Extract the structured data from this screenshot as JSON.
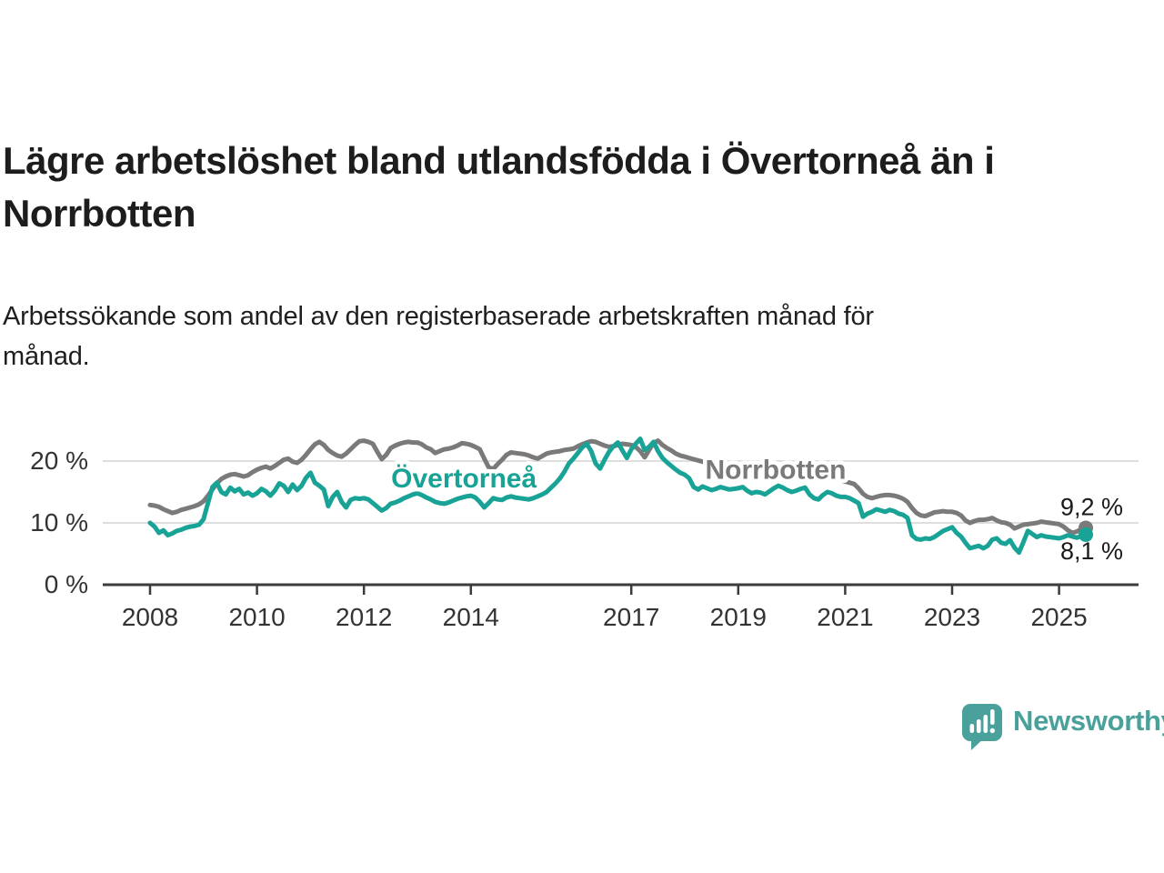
{
  "header": {
    "title_lines": [
      "Lägre arbetslöshet bland utlandsfödda i Övertorneå än i",
      "Norrbotten"
    ],
    "subtitle_lines": [
      "Arbetssökande som andel av den registerbaserade arbetskraften månad för",
      "månad."
    ]
  },
  "branding": {
    "logo_text": "Newsworthy",
    "logo_color": "#4aa09b"
  },
  "chart_data": {
    "type": "line",
    "title": "Lägre arbetslöshet bland utlandsfödda i Övertorneå än i Norrbotten",
    "subtitle": "Arbetssökande som andel av den registerbaserade arbetskraften månad för månad.",
    "unit": "%",
    "grid": "horizontal",
    "legend": "inline-labels",
    "xlim": [
      2007.1,
      2026.5
    ],
    "ylim": [
      0,
      26
    ],
    "x_ticks": [
      2008,
      2010,
      2012,
      2014,
      2017,
      2019,
      2021,
      2023,
      2025
    ],
    "y_ticks": [
      {
        "value": 0,
        "label": "0 %"
      },
      {
        "value": 10,
        "label": "10 %"
      },
      {
        "value": 20,
        "label": "20 %"
      }
    ],
    "series": [
      {
        "name": "Norrbotten",
        "color": "#7a7a7a",
        "start": "2008-01",
        "freq": "monthly",
        "end_label": "9,2 %",
        "label_pos": {
          "x": 2019.7,
          "y": 18.6
        },
        "values": [
          12.9,
          12.8,
          12.6,
          12.2,
          11.9,
          11.6,
          11.8,
          12.1,
          12.3,
          12.5,
          12.7,
          13.0,
          13.5,
          14.4,
          15.4,
          16.4,
          17.1,
          17.5,
          17.8,
          17.9,
          17.7,
          17.5,
          17.7,
          18.2,
          18.6,
          18.9,
          19.1,
          18.8,
          19.2,
          19.7,
          20.2,
          20.4,
          19.9,
          19.7,
          20.2,
          21.0,
          21.9,
          22.7,
          23.1,
          22.6,
          21.8,
          21.3,
          20.9,
          20.7,
          21.2,
          21.9,
          22.6,
          23.2,
          23.3,
          23.1,
          22.8,
          21.5,
          20.3,
          21.0,
          22.1,
          22.5,
          22.8,
          23.0,
          23.1,
          23.0,
          23.0,
          22.7,
          22.2,
          21.9,
          21.3,
          21.6,
          21.9,
          22.0,
          22.2,
          22.5,
          22.9,
          22.8,
          22.6,
          22.3,
          21.9,
          20.4,
          19.0,
          18.7,
          19.5,
          20.2,
          21.0,
          21.4,
          21.3,
          21.2,
          21.1,
          20.9,
          20.6,
          20.4,
          20.8,
          21.2,
          21.4,
          21.5,
          21.6,
          21.8,
          21.9,
          22.0,
          22.4,
          22.7,
          23.0,
          23.2,
          23.1,
          22.8,
          22.5,
          22.3,
          22.4,
          22.6,
          22.8,
          22.7,
          22.6,
          22.3,
          21.6,
          20.6,
          21.8,
          22.9,
          23.3,
          22.6,
          22.1,
          21.7,
          21.2,
          20.9,
          20.7,
          20.5,
          20.3,
          20.1,
          19.9,
          19.7,
          19.8,
          19.9,
          19.7,
          19.5,
          19.4,
          19.3,
          19.2,
          19.0,
          18.8,
          18.6,
          18.4,
          18.3,
          18.5,
          18.6,
          18.4,
          18.2,
          18.1,
          18.0,
          17.9,
          17.8,
          18.0,
          18.4,
          18.6,
          18.5,
          18.2,
          17.9,
          17.6,
          17.3,
          17.1,
          16.9,
          16.7,
          16.5,
          16.3,
          15.6,
          14.7,
          14.2,
          14.0,
          14.2,
          14.4,
          14.5,
          14.5,
          14.4,
          14.2,
          13.9,
          13.4,
          12.4,
          11.6,
          11.2,
          11.1,
          11.4,
          11.7,
          11.8,
          11.9,
          11.8,
          11.8,
          11.6,
          11.2,
          10.4,
          10.0,
          10.3,
          10.5,
          10.5,
          10.6,
          10.8,
          10.4,
          10.1,
          10.0,
          9.7,
          9.1,
          9.4,
          9.7,
          9.8,
          9.9,
          10.0,
          10.2,
          10.1,
          10.0,
          9.9,
          9.8,
          9.4,
          8.8,
          8.4,
          8.6,
          9.0,
          9.2
        ]
      },
      {
        "name": "Övertorneå",
        "color": "#18a396",
        "start": "2008-01",
        "freq": "monthly",
        "end_label": "8,1 %",
        "label_pos": {
          "x": 2013.87,
          "y": 17.2
        },
        "values": [
          10.0,
          9.4,
          8.4,
          8.8,
          8.0,
          8.3,
          8.7,
          8.9,
          9.2,
          9.4,
          9.5,
          9.7,
          10.6,
          13.2,
          15.8,
          16.5,
          15.0,
          14.6,
          15.7,
          15.1,
          15.5,
          14.6,
          14.9,
          14.4,
          14.8,
          15.5,
          15.1,
          14.4,
          15.2,
          16.4,
          16.0,
          15.0,
          16.2,
          15.3,
          16.0,
          17.3,
          18.1,
          16.5,
          16.0,
          15.4,
          12.7,
          14.2,
          15.0,
          13.4,
          12.5,
          13.7,
          14.0,
          13.9,
          14.0,
          13.8,
          13.2,
          12.6,
          12.0,
          12.4,
          13.1,
          13.3,
          13.6,
          14.0,
          14.3,
          14.6,
          14.8,
          14.5,
          14.1,
          13.8,
          13.4,
          13.2,
          13.1,
          13.3,
          13.6,
          13.9,
          14.1,
          14.3,
          14.4,
          14.1,
          13.4,
          12.5,
          13.2,
          14.0,
          13.8,
          13.7,
          14.1,
          14.3,
          14.1,
          14.0,
          13.9,
          13.8,
          14.0,
          14.3,
          14.6,
          15.0,
          15.7,
          16.4,
          17.2,
          18.3,
          19.6,
          20.4,
          21.3,
          22.2,
          22.8,
          21.6,
          19.6,
          18.8,
          20.2,
          21.5,
          22.4,
          23.0,
          21.7,
          20.5,
          21.9,
          22.8,
          23.6,
          21.8,
          22.3,
          23.1,
          21.6,
          20.5,
          19.8,
          19.2,
          18.6,
          18.1,
          17.8,
          17.2,
          15.8,
          15.4,
          15.9,
          15.6,
          15.3,
          15.5,
          15.8,
          15.6,
          15.4,
          15.5,
          15.6,
          15.8,
          15.2,
          14.8,
          15.0,
          14.9,
          14.6,
          15.1,
          15.6,
          16.0,
          15.7,
          15.3,
          15.0,
          15.2,
          15.5,
          15.7,
          14.6,
          14.0,
          13.8,
          14.5,
          15.0,
          14.8,
          14.4,
          14.2,
          14.2,
          14.0,
          13.6,
          13.2,
          11.0,
          11.5,
          11.8,
          12.2,
          12.0,
          11.8,
          12.1,
          11.9,
          11.5,
          11.3,
          10.8,
          8.0,
          7.4,
          7.3,
          7.5,
          7.4,
          7.7,
          8.2,
          8.7,
          9.0,
          9.3,
          8.4,
          7.8,
          6.8,
          5.9,
          6.1,
          6.3,
          5.9,
          6.3,
          7.3,
          7.5,
          6.8,
          6.6,
          7.2,
          6.0,
          5.2,
          6.9,
          8.7,
          8.2,
          7.7,
          8.0,
          7.8,
          7.7,
          7.6,
          7.5,
          7.7,
          8.0,
          7.8,
          7.6,
          7.9,
          8.1
        ]
      }
    ],
    "colors": {
      "axis": "#3b3b3b",
      "gridline": "#dedede",
      "tick_label": "#333333",
      "end_label": "#1a1a1a"
    }
  }
}
